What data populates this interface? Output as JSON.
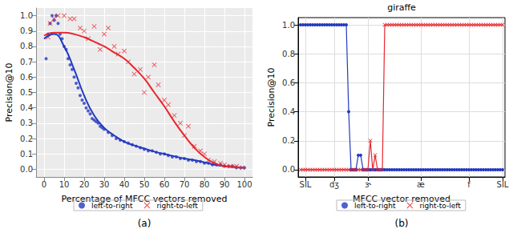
{
  "chart_data": [
    {
      "type": "scatter",
      "caption": "(a)",
      "x_label": "Percentage of MFCC vectors removed",
      "y_label": "Precision@10",
      "xlim": [
        -4,
        104
      ],
      "ylim": [
        -0.05,
        1.05
      ],
      "xticks": [
        0,
        10,
        20,
        30,
        40,
        50,
        60,
        70,
        80,
        90,
        100
      ],
      "yticks": [
        {
          "value": 0,
          "label": "0.0"
        },
        0.1,
        0.2,
        0.3,
        0.4,
        0.5,
        0.6,
        0.7,
        0.8,
        0.9,
        {
          "value": 1,
          "label": "1.0"
        }
      ],
      "grid": true,
      "legend": "bottom",
      "series": [
        {
          "name": "left-to-right",
          "type": "scatter",
          "color": "#2339c0",
          "marker": "circle",
          "x": [
            1,
            2,
            3,
            4,
            5,
            6,
            7,
            8,
            9,
            10,
            11,
            12,
            13,
            14,
            15,
            16,
            17,
            18,
            19,
            20,
            21,
            22,
            23,
            24,
            25,
            26,
            27,
            28,
            29,
            30,
            32,
            34,
            36,
            38,
            40,
            42,
            44,
            46,
            48,
            50,
            52,
            54,
            56,
            58,
            60,
            62,
            64,
            66,
            68,
            70,
            72,
            74,
            76,
            78,
            80,
            82,
            84,
            86,
            88,
            90,
            92,
            94,
            96,
            98,
            100
          ],
          "values": [
            0.72,
            0.88,
            0.95,
            1,
            0.97,
            1,
            0.95,
            0.88,
            0.85,
            0.8,
            0.78,
            0.72,
            0.68,
            0.65,
            0.6,
            0.56,
            0.53,
            0.48,
            0.45,
            0.43,
            0.4,
            0.38,
            0.36,
            0.33,
            0.32,
            0.31,
            0.3,
            0.28,
            0.27,
            0.26,
            0.24,
            0.22,
            0.2,
            0.19,
            0.18,
            0.17,
            0.16,
            0.15,
            0.14,
            0.13,
            0.12,
            0.12,
            0.11,
            0.1,
            0.1,
            0.09,
            0.08,
            0.08,
            0.07,
            0.07,
            0.06,
            0.06,
            0.05,
            0.05,
            0.04,
            0.04,
            0.03,
            0.03,
            0.03,
            0.02,
            0.02,
            0.02,
            0.01,
            0.01,
            0.01
          ]
        },
        {
          "name": "right-to-left",
          "type": "scatter",
          "color": "#e8262d",
          "marker": "x",
          "x": [
            2,
            3,
            5,
            7,
            10,
            13,
            15,
            18,
            20,
            22,
            25,
            28,
            30,
            32,
            35,
            37,
            40,
            42,
            45,
            48,
            50,
            52,
            55,
            57,
            60,
            62,
            65,
            68,
            70,
            72,
            75,
            78,
            80,
            82,
            85,
            88,
            90,
            93,
            96,
            99
          ],
          "values": [
            0.86,
            0.95,
            0.98,
            1,
            1,
            0.98,
            0.98,
            0.92,
            0.9,
            0.85,
            0.93,
            0.78,
            0.88,
            0.92,
            0.8,
            0.75,
            0.77,
            0.7,
            0.62,
            0.65,
            0.5,
            0.6,
            0.68,
            0.55,
            0.45,
            0.42,
            0.35,
            0.3,
            0.22,
            0.28,
            0.15,
            0.12,
            0.1,
            0.06,
            0.05,
            0.04,
            0.03,
            0.02,
            0.02,
            0.01
          ]
        },
        {
          "name": "left-to-right",
          "type": "line",
          "color": "#2339c0",
          "line_style": "solid",
          "x": [
            0,
            5,
            10,
            15,
            20,
            25,
            30,
            35,
            40,
            45,
            50,
            55,
            60,
            65,
            70,
            75,
            80,
            85,
            90,
            95,
            100
          ],
          "values": [
            0.85,
            0.88,
            0.8,
            0.65,
            0.48,
            0.35,
            0.27,
            0.22,
            0.18,
            0.155,
            0.135,
            0.115,
            0.1,
            0.085,
            0.07,
            0.06,
            0.045,
            0.03,
            0.02,
            0.015,
            0.01
          ]
        },
        {
          "name": "right-to-left",
          "type": "line",
          "color": "#e8262d",
          "line_style": "solid",
          "x": [
            0,
            5,
            10,
            15,
            20,
            25,
            30,
            35,
            40,
            45,
            50,
            55,
            60,
            65,
            70,
            75,
            80,
            85,
            90,
            95,
            100
          ],
          "values": [
            0.87,
            0.89,
            0.89,
            0.88,
            0.86,
            0.83,
            0.8,
            0.76,
            0.72,
            0.66,
            0.59,
            0.5,
            0.41,
            0.31,
            0.22,
            0.14,
            0.08,
            0.04,
            0.02,
            0.015,
            0.01
          ]
        }
      ]
    },
    {
      "type": "line",
      "title": "giraffe",
      "caption": "(b)",
      "x_label": "MFCC vector removed",
      "y_label": "Precision@10",
      "xlim": [
        -1,
        85
      ],
      "ylim": [
        -0.05,
        1.05
      ],
      "xticks": [
        {
          "value": 2,
          "label": "SIL"
        },
        {
          "value": 14,
          "label": "dʒ"
        },
        {
          "value": 28,
          "label": "ɝ"
        },
        {
          "value": 50,
          "label": "æ"
        },
        {
          "value": 70,
          "label": "f"
        },
        {
          "value": 84,
          "label": "SIL"
        }
      ],
      "yticks": [
        {
          "value": 0,
          "label": "0.0"
        },
        0.2,
        0.4,
        0.6,
        0.8,
        {
          "value": 1,
          "label": "1.0"
        }
      ],
      "grid": true,
      "legend": "bottom",
      "x": [
        0,
        1,
        2,
        3,
        4,
        5,
        6,
        7,
        8,
        9,
        10,
        11,
        12,
        13,
        14,
        15,
        16,
        17,
        18,
        19,
        20,
        21,
        22,
        23,
        24,
        25,
        26,
        27,
        28,
        29,
        30,
        31,
        32,
        33,
        34,
        35,
        36,
        37,
        38,
        39,
        40,
        41,
        42,
        43,
        44,
        45,
        46,
        47,
        48,
        49,
        50,
        51,
        52,
        53,
        54,
        55,
        56,
        57,
        58,
        59,
        60,
        61,
        62,
        63,
        64,
        65,
        66,
        67,
        68,
        69,
        70,
        71,
        72,
        73,
        74,
        75,
        76,
        77,
        78,
        79,
        80,
        81,
        82,
        83,
        84
      ],
      "series": [
        {
          "name": "left-to-right",
          "color": "#2339c0",
          "marker": "circle",
          "values": [
            1,
            1,
            1,
            1,
            1,
            1,
            1,
            1,
            1,
            1,
            1,
            1,
            1,
            1,
            1,
            1,
            1,
            1,
            1,
            1,
            0.4,
            0,
            0,
            0,
            0.1,
            0.1,
            0,
            0,
            0,
            0,
            0,
            0,
            0,
            0,
            0,
            0,
            0,
            0,
            0,
            0,
            0,
            0,
            0,
            0,
            0,
            0,
            0,
            0,
            0,
            0,
            0,
            0,
            0,
            0,
            0,
            0,
            0,
            0,
            0,
            0,
            0,
            0,
            0,
            0,
            0,
            0,
            0,
            0,
            0,
            0,
            0,
            0,
            0,
            0,
            0,
            0,
            0,
            0,
            0,
            0,
            0,
            0,
            0,
            0,
            0
          ]
        },
        {
          "name": "right-to-left",
          "color": "#e8262d",
          "marker": "x",
          "values": [
            0,
            0,
            0,
            0,
            0,
            0,
            0,
            0,
            0,
            0,
            0,
            0,
            0,
            0,
            0,
            0,
            0,
            0,
            0,
            0,
            0,
            0,
            0,
            0,
            0,
            0,
            0,
            0,
            0,
            0.2,
            0,
            0.1,
            0,
            0,
            0,
            1,
            1,
            1,
            1,
            1,
            1,
            1,
            1,
            1,
            1,
            1,
            1,
            1,
            1,
            1,
            1,
            1,
            1,
            1,
            1,
            1,
            1,
            1,
            1,
            1,
            1,
            1,
            1,
            1,
            1,
            1,
            1,
            1,
            1,
            1,
            1,
            1,
            1,
            1,
            1,
            1,
            1,
            1,
            1,
            1,
            1,
            1,
            1,
            1,
            1
          ]
        }
      ]
    }
  ]
}
